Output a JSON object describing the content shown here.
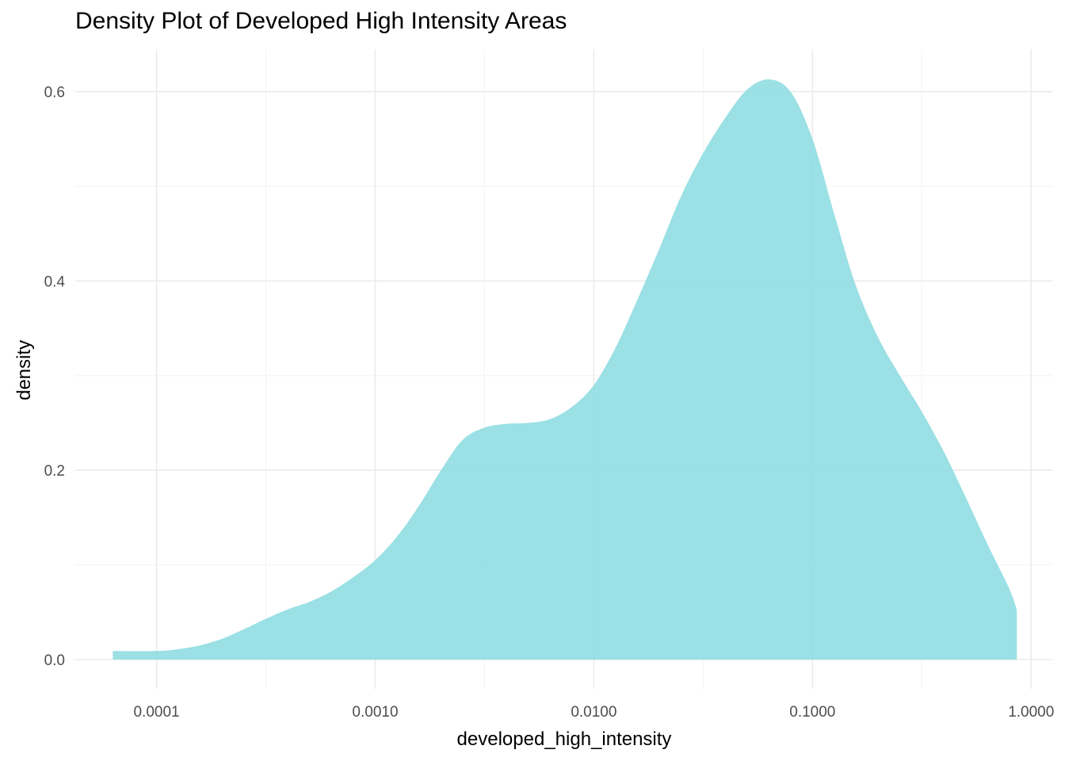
{
  "chart_data": {
    "type": "area",
    "title": "Density Plot of Developed High Intensity Areas",
    "xlabel": "developed_high_intensity",
    "ylabel": "density",
    "x_scale": "log10",
    "xlim": [
      4.25e-05,
      1.25
    ],
    "ylim": [
      -0.031,
      0.645
    ],
    "grid": true,
    "fill_color": "#8fdde1",
    "fill_opacity": 0.9,
    "x_ticks": [
      {
        "value": 0.0001,
        "label": "0.0001"
      },
      {
        "value": 0.001,
        "label": "0.0010"
      },
      {
        "value": 0.01,
        "label": "0.0100"
      },
      {
        "value": 0.1,
        "label": "0.1000"
      },
      {
        "value": 1,
        "label": "1.0000"
      }
    ],
    "x_minor_ticks": [
      0.000316,
      0.00316,
      0.0316,
      0.316
    ],
    "y_ticks": [
      {
        "value": 0,
        "label": "0.0"
      },
      {
        "value": 0.2,
        "label": "0.2"
      },
      {
        "value": 0.4,
        "label": "0.4"
      },
      {
        "value": 0.6,
        "label": "0.6"
      }
    ],
    "y_minor_ticks": [
      0.1,
      0.3,
      0.5
    ],
    "x": [
      6.31e-05,
      0.0001,
      0.000126,
      0.000158,
      0.0002,
      0.000251,
      0.000316,
      0.000398,
      0.000501,
      0.000631,
      0.000794,
      0.001,
      0.00126,
      0.00158,
      0.002,
      0.00251,
      0.00316,
      0.00398,
      0.00501,
      0.00631,
      0.00794,
      0.01,
      0.0126,
      0.0158,
      0.02,
      0.0251,
      0.0316,
      0.0398,
      0.0501,
      0.0631,
      0.0794,
      0.1,
      0.126,
      0.158,
      0.2,
      0.251,
      0.316,
      0.398,
      0.501,
      0.631,
      0.794,
      0.86
    ],
    "y": [
      0.009,
      0.009,
      0.011,
      0.015,
      0.022,
      0.032,
      0.043,
      0.053,
      0.061,
      0.072,
      0.087,
      0.105,
      0.13,
      0.162,
      0.2,
      0.232,
      0.245,
      0.249,
      0.25,
      0.254,
      0.267,
      0.29,
      0.33,
      0.38,
      0.435,
      0.49,
      0.535,
      0.572,
      0.602,
      0.613,
      0.6,
      0.55,
      0.47,
      0.395,
      0.34,
      0.3,
      0.262,
      0.22,
      0.172,
      0.122,
      0.075,
      0.052
    ]
  }
}
